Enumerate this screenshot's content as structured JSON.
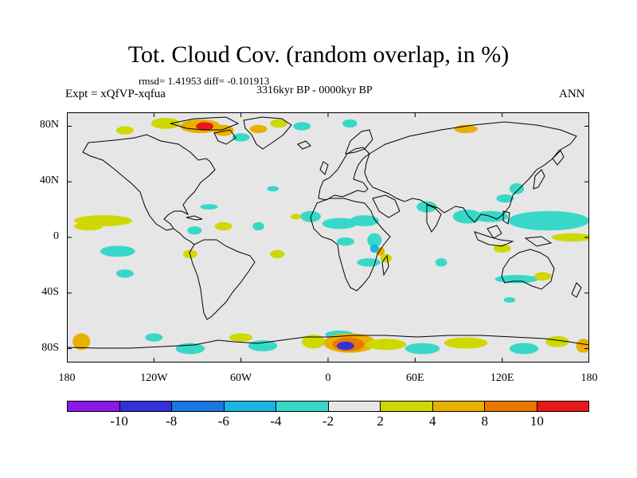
{
  "title": "Tot. Cloud Cov. (random overlap, in %)",
  "stats": "rmsd= 1.41953 diff= -0.101913",
  "period": "3316kyr BP - 0000kyr BP",
  "experiment": "Expt = xQfVP-xqfua",
  "season": "ANN",
  "map": {
    "lon_range": [
      -180,
      180
    ],
    "lat_range": [
      -90,
      90
    ],
    "background_color": "#e6e6e6",
    "x_ticks": [
      {
        "lon": -180,
        "label": "180"
      },
      {
        "lon": -120,
        "label": "120W"
      },
      {
        "lon": -60,
        "label": "60W"
      },
      {
        "lon": 0,
        "label": "0"
      },
      {
        "lon": 60,
        "label": "60E"
      },
      {
        "lon": 120,
        "label": "120E"
      },
      {
        "lon": 180,
        "label": "180"
      }
    ],
    "y_ticks": [
      {
        "lat": 80,
        "label": "80N"
      },
      {
        "lat": 40,
        "label": "40N"
      },
      {
        "lat": 0,
        "label": "0"
      },
      {
        "lat": -40,
        "label": "40S"
      },
      {
        "lat": -80,
        "label": "80S"
      }
    ],
    "anomaly_patches": [
      {
        "lon": -155,
        "lat": 12,
        "rlon": 20,
        "rlat": 4,
        "value": 3
      },
      {
        "lon": -165,
        "lat": 8,
        "rlon": 10,
        "rlat": 3,
        "value": 3
      },
      {
        "lon": -145,
        "lat": -10,
        "rlon": 12,
        "rlat": 4,
        "value": -3
      },
      {
        "lon": -140,
        "lat": -26,
        "rlon": 6,
        "rlat": 3,
        "value": -3
      },
      {
        "lon": -95,
        "lat": -12,
        "rlon": 5,
        "rlat": 3,
        "value": 3
      },
      {
        "lon": -92,
        "lat": 5,
        "rlon": 5,
        "rlat": 3,
        "value": -3
      },
      {
        "lon": -72,
        "lat": 8,
        "rlon": 6,
        "rlat": 3,
        "value": 3
      },
      {
        "lon": -82,
        "lat": 22,
        "rlon": 6,
        "rlat": 2,
        "value": -3
      },
      {
        "lon": -48,
        "lat": 8,
        "rlon": 4,
        "rlat": 3,
        "value": -3
      },
      {
        "lon": -35,
        "lat": -12,
        "rlon": 5,
        "rlat": 3,
        "value": 3
      },
      {
        "lon": -38,
        "lat": 35,
        "rlon": 4,
        "rlat": 2,
        "value": -3
      },
      {
        "lon": -22,
        "lat": 15,
        "rlon": 4,
        "rlat": 2,
        "value": 3
      },
      {
        "lon": -12,
        "lat": 15,
        "rlon": 7,
        "rlat": 4,
        "value": -3
      },
      {
        "lon": 8,
        "lat": 10,
        "rlon": 12,
        "rlat": 4,
        "value": -3
      },
      {
        "lon": 25,
        "lat": 12,
        "rlon": 10,
        "rlat": 4,
        "value": -3
      },
      {
        "lon": 12,
        "lat": -3,
        "rlon": 6,
        "rlat": 3,
        "value": -3
      },
      {
        "lon": 32,
        "lat": -2,
        "rlon": 5,
        "rlat": 5,
        "value": -3
      },
      {
        "lon": 36,
        "lat": -10,
        "rlon": 3,
        "rlat": 3,
        "value": 5
      },
      {
        "lon": 32,
        "lat": -8,
        "rlon": 3,
        "rlat": 3,
        "value": -5
      },
      {
        "lon": 28,
        "lat": -18,
        "rlon": 8,
        "rlat": 3,
        "value": -3
      },
      {
        "lon": 40,
        "lat": -15,
        "rlon": 4,
        "rlat": 3,
        "value": 3
      },
      {
        "lon": 68,
        "lat": 22,
        "rlon": 7,
        "rlat": 4,
        "value": -3
      },
      {
        "lon": 96,
        "lat": 15,
        "rlon": 10,
        "rlat": 5,
        "value": -3
      },
      {
        "lon": 122,
        "lat": 28,
        "rlon": 6,
        "rlat": 3,
        "value": -3
      },
      {
        "lon": 130,
        "lat": 35,
        "rlon": 5,
        "rlat": 4,
        "value": -3
      },
      {
        "lon": 152,
        "lat": 12,
        "rlon": 28,
        "rlat": 7,
        "value": -3
      },
      {
        "lon": 112,
        "lat": 15,
        "rlon": 12,
        "rlat": 4,
        "value": -3
      },
      {
        "lon": 168,
        "lat": 0,
        "rlon": 14,
        "rlat": 3,
        "value": 3
      },
      {
        "lon": 120,
        "lat": -8,
        "rlon": 6,
        "rlat": 3,
        "value": 3
      },
      {
        "lon": 78,
        "lat": -18,
        "rlon": 4,
        "rlat": 3,
        "value": -3
      },
      {
        "lon": 130,
        "lat": -30,
        "rlon": 15,
        "rlat": 3,
        "value": -3
      },
      {
        "lon": 148,
        "lat": -28,
        "rlon": 6,
        "rlat": 3,
        "value": 3
      },
      {
        "lon": 125,
        "lat": -45,
        "rlon": 4,
        "rlat": 2,
        "value": -3
      },
      {
        "lon": -112,
        "lat": 82,
        "rlon": 10,
        "rlat": 4,
        "value": 3
      },
      {
        "lon": -88,
        "lat": 80,
        "rlon": 14,
        "rlat": 5,
        "value": 7
      },
      {
        "lon": -85,
        "lat": 80,
        "rlon": 6,
        "rlat": 3,
        "value": 11
      },
      {
        "lon": -72,
        "lat": 77,
        "rlon": 7,
        "rlat": 4,
        "value": 7
      },
      {
        "lon": -60,
        "lat": 72,
        "rlon": 6,
        "rlat": 3,
        "value": -3
      },
      {
        "lon": -48,
        "lat": 78,
        "rlon": 6,
        "rlat": 3,
        "value": 5
      },
      {
        "lon": -34,
        "lat": 82,
        "rlon": 6,
        "rlat": 3,
        "value": 3
      },
      {
        "lon": -18,
        "lat": 80,
        "rlon": 6,
        "rlat": 3,
        "value": -3
      },
      {
        "lon": 15,
        "lat": 82,
        "rlon": 5,
        "rlat": 3,
        "value": -3
      },
      {
        "lon": 95,
        "lat": 78,
        "rlon": 8,
        "rlat": 3,
        "value": 7
      },
      {
        "lon": -140,
        "lat": 77,
        "rlon": 6,
        "rlat": 3,
        "value": 3
      },
      {
        "lon": -170,
        "lat": -75,
        "rlon": 6,
        "rlat": 6,
        "value": 7
      },
      {
        "lon": -120,
        "lat": -72,
        "rlon": 6,
        "rlat": 3,
        "value": -3
      },
      {
        "lon": -95,
        "lat": -80,
        "rlon": 10,
        "rlat": 4,
        "value": -3
      },
      {
        "lon": -60,
        "lat": -72,
        "rlon": 8,
        "rlat": 3,
        "value": 3
      },
      {
        "lon": -45,
        "lat": -78,
        "rlon": 10,
        "rlat": 4,
        "value": -3
      },
      {
        "lon": -10,
        "lat": -75,
        "rlon": 8,
        "rlat": 5,
        "value": 3
      },
      {
        "lon": 8,
        "lat": -70,
        "rlon": 10,
        "rlat": 3,
        "value": -3
      },
      {
        "lon": 15,
        "lat": -76,
        "rlon": 18,
        "rlat": 7,
        "value": 5
      },
      {
        "lon": 14,
        "lat": -77,
        "rlon": 11,
        "rlat": 5,
        "value": 9
      },
      {
        "lon": 12,
        "lat": -78,
        "rlon": 6,
        "rlat": 3,
        "value": -9
      },
      {
        "lon": 40,
        "lat": -77,
        "rlon": 14,
        "rlat": 4,
        "value": 3
      },
      {
        "lon": 65,
        "lat": -80,
        "rlon": 12,
        "rlat": 4,
        "value": -3
      },
      {
        "lon": 95,
        "lat": -76,
        "rlon": 15,
        "rlat": 4,
        "value": 3
      },
      {
        "lon": 135,
        "lat": -80,
        "rlon": 10,
        "rlat": 4,
        "value": -3
      },
      {
        "lon": 158,
        "lat": -75,
        "rlon": 8,
        "rlat": 4,
        "value": 3
      },
      {
        "lon": 176,
        "lat": -78,
        "rlon": 5,
        "rlat": 5,
        "value": 7
      }
    ]
  },
  "colorbar": {
    "colors": [
      "#8b18e8",
      "#3530d8",
      "#1a78e0",
      "#1ab4e0",
      "#38d8c8",
      "#e6e6e6",
      "#cfd800",
      "#e8b000",
      "#e87800",
      "#e81818"
    ],
    "levels": [
      -10,
      -8,
      -6,
      -4,
      -2,
      2,
      4,
      8,
      10
    ],
    "tick_labels": [
      "-10",
      "-8",
      "-6",
      "-4",
      "-2",
      "2",
      "4",
      "8",
      "10"
    ]
  }
}
